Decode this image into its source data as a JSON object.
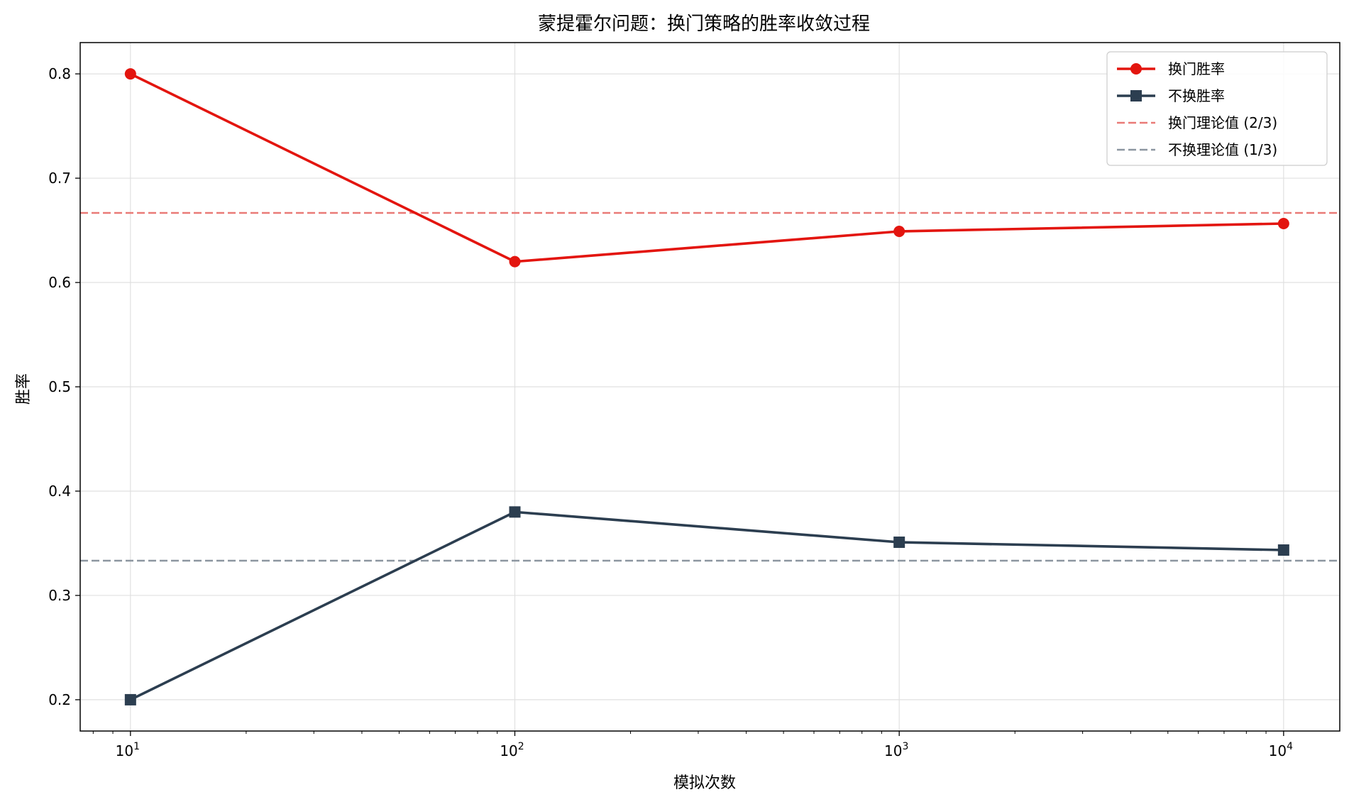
{
  "chart_data": {
    "type": "line",
    "title": "蒙提霍尔问题：换门策略的胜率收敛过程",
    "xlabel": "模拟次数",
    "ylabel": "胜率",
    "x_scale": "log",
    "x": [
      10,
      100,
      1000,
      10000
    ],
    "x_tick_labels": [
      {
        "base": "10",
        "exp": "1"
      },
      {
        "base": "10",
        "exp": "2"
      },
      {
        "base": "10",
        "exp": "3"
      },
      {
        "base": "10",
        "exp": "4"
      }
    ],
    "xlim": [
      7.4,
      14000
    ],
    "ylim": [
      0.17,
      0.83
    ],
    "y_ticks": [
      0.2,
      0.3,
      0.4,
      0.5,
      0.6,
      0.7,
      0.8
    ],
    "y_tick_labels": [
      "0.2",
      "0.3",
      "0.4",
      "0.5",
      "0.6",
      "0.7",
      "0.8"
    ],
    "grid": true,
    "legend_position": "top-right",
    "series": [
      {
        "name": "换门胜率",
        "values": [
          0.8,
          0.62,
          0.649,
          0.6565
        ],
        "color": "#e3150f",
        "marker": "circle"
      },
      {
        "name": "不换胜率",
        "values": [
          0.2,
          0.38,
          0.351,
          0.3435
        ],
        "color": "#2c3e50",
        "marker": "square"
      }
    ],
    "reference_lines": [
      {
        "name": "换门理论值 (2/3)",
        "y": 0.6667,
        "color": "#e97a77",
        "style": "dashed"
      },
      {
        "name": "不换理论值 (1/3)",
        "y": 0.3333,
        "color": "#8c96a0",
        "style": "dashed"
      }
    ]
  }
}
